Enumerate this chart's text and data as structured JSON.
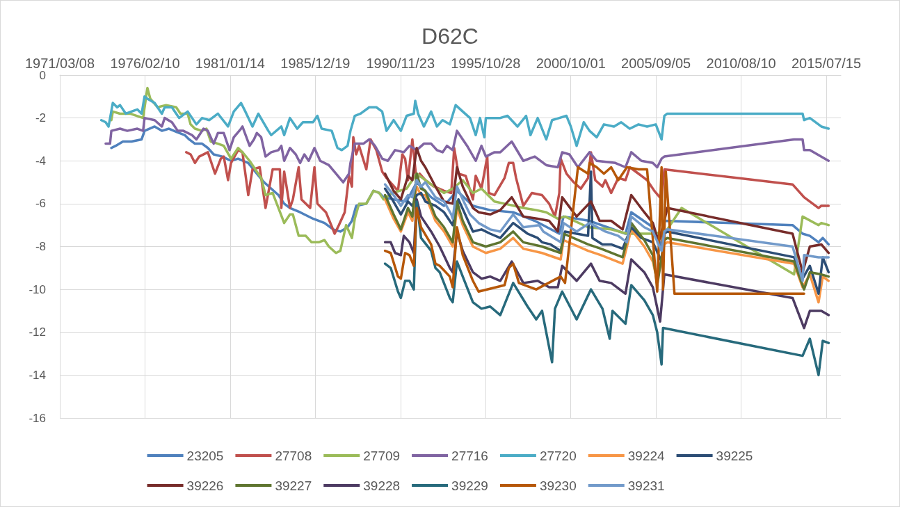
{
  "chart_data": {
    "type": "line",
    "title": "D62C",
    "xlim": [
      "1971-03-08",
      "2016-05-18"
    ],
    "xticks": [
      {
        "value": "1971-03-08",
        "label": "1971/03/08"
      },
      {
        "value": "1976-02-10",
        "label": "1976/02/10"
      },
      {
        "value": "1981-01-14",
        "label": "1981/01/14"
      },
      {
        "value": "1985-12-19",
        "label": "1985/12/19"
      },
      {
        "value": "1990-11-23",
        "label": "1990/11/23"
      },
      {
        "value": "1995-10-28",
        "label": "1995/10/28"
      },
      {
        "value": "2000-10-01",
        "label": "2000/10/01"
      },
      {
        "value": "2005-09-05",
        "label": "2005/09/05"
      },
      {
        "value": "2010-08-10",
        "label": "2010/08/10"
      },
      {
        "value": "2015-07-15",
        "label": "2015/07/15"
      }
    ],
    "ylim": [
      -16,
      0
    ],
    "yticks": [
      -16,
      -14,
      -12,
      -10,
      -8,
      -6,
      -4,
      -2,
      0
    ],
    "grid": true,
    "legend": "bottom",
    "marker": "none",
    "series": [
      {
        "name": "23205",
        "color": "#4f81bd",
        "x": [
          "1974-03",
          "1974-06",
          "1974-11",
          "1975-05",
          "1975-12",
          "1976-02",
          "1976-09",
          "1977-02",
          "1977-07",
          "1978-02",
          "1978-06",
          "1978-09",
          "1979-01",
          "1979-06",
          "1979-10",
          "1980-02",
          "1980-08",
          "1981-02",
          "1981-07",
          "1982-02",
          "1982-08",
          "1983-01",
          "1983-06",
          "1983-11",
          "1984-03",
          "1984-07",
          "1985-02",
          "1985-11",
          "1986-07",
          "1987-01",
          "1987-06",
          "1987-11",
          "1988-02",
          "1988-05",
          "1988-12",
          "1989-05",
          "1989-09",
          "1989-12",
          "1990-07",
          "1991-04",
          "1991-11",
          "1992-09",
          "1993-06",
          "1994-03",
          "1995-02",
          "1996-02",
          "1997-06",
          "1998-09",
          "2000-02",
          "2000-05",
          "2001-11",
          "2003-12",
          "2004-04",
          "2005-07",
          "2006-01",
          "2006-03",
          "2013-08",
          "2014-03",
          "2014-08",
          "2015-02",
          "2015-05",
          "2015-09"
        ],
        "values": [
          -3.4,
          -3.3,
          -3.1,
          -3.1,
          -3.0,
          -2.6,
          -2.4,
          -2.6,
          -2.5,
          -2.7,
          -2.8,
          -3.0,
          -3.2,
          -3.2,
          -3.4,
          -3.7,
          -3.8,
          -4.0,
          -3.9,
          -4.1,
          -4.6,
          -5.0,
          -5.3,
          -5.6,
          -6.0,
          -6.2,
          -6.4,
          -6.7,
          -6.9,
          -7.2,
          -7.3,
          -7.1,
          -6.8,
          -6.1,
          -6.0,
          -5.4,
          -5.5,
          -5.7,
          -5.8,
          -5.9,
          -5.0,
          -5.7,
          -6.1,
          -5.4,
          -6.1,
          -6.3,
          -6.4,
          -6.8,
          -7.4,
          -6.6,
          -6.8,
          -7.4,
          -6.4,
          -7.1,
          -8.0,
          -6.8,
          -7.0,
          -7.4,
          -7.5,
          -7.8,
          -7.6,
          -7.9
        ]
      },
      {
        "name": "27708",
        "color": "#c0504d",
        "x": [
          "1978-07",
          "1978-10",
          "1979-01",
          "1979-04",
          "1979-10",
          "1980-03",
          "1980-07",
          "1980-09",
          "1980-12",
          "1981-02",
          "1981-07",
          "1981-10",
          "1982-02",
          "1982-05",
          "1982-10",
          "1983-02",
          "1983-07",
          "1983-12",
          "1984-01",
          "1984-03",
          "1984-07",
          "1984-09",
          "1985-01",
          "1985-03",
          "1985-09",
          "1985-12",
          "1986-02",
          "1986-08",
          "1987-02",
          "1987-05",
          "1987-09",
          "1987-12",
          "1988-02",
          "1988-03",
          "1988-05",
          "1988-07",
          "1988-12",
          "1989-03",
          "1989-07",
          "1989-11",
          "1990-02",
          "1990-10",
          "1991-01",
          "1991-03",
          "1991-05",
          "1991-08",
          "1991-11",
          "1992-01",
          "1992-05",
          "1992-11",
          "1993-06",
          "1993-11",
          "1994-01",
          "1994-04",
          "1994-09",
          "1995-02",
          "1995-04",
          "1995-08",
          "1995-12",
          "1996-01",
          "1996-05",
          "1996-12",
          "1997-03",
          "1997-06",
          "1997-08",
          "1998-01",
          "1998-07",
          "1999-02",
          "1999-07",
          "1999-11",
          "2000-02",
          "2000-03",
          "2000-07",
          "2000-12",
          "2001-05",
          "2001-10",
          "2001-12",
          "2002-03",
          "2002-08",
          "2002-10",
          "2003-02",
          "2003-07",
          "2003-12",
          "2004-03",
          "2004-09",
          "2005-03",
          "2005-08",
          "2006-01",
          "2006-03",
          "2013-08",
          "2014-04",
          "2015-02",
          "2015-04",
          "2015-09"
        ],
        "values": [
          -3.6,
          -3.7,
          -4.1,
          -3.8,
          -3.6,
          -4.6,
          -3.9,
          -3.8,
          -4.9,
          -4.1,
          -3.5,
          -3.6,
          -5.6,
          -4.4,
          -4.3,
          -6.2,
          -4.4,
          -4.4,
          -6.2,
          -4.5,
          -6.2,
          -5.8,
          -4.3,
          -5.8,
          -6.2,
          -4.3,
          -6.0,
          -6.4,
          -7.4,
          -7.0,
          -6.4,
          -4.7,
          -5.2,
          -2.9,
          -3.7,
          -3.3,
          -4.4,
          -3.0,
          -3.5,
          -4.5,
          -4.8,
          -5.4,
          -3.7,
          -3.9,
          -4.9,
          -3.0,
          -5.0,
          -4.6,
          -4.9,
          -5.2,
          -5.4,
          -5.5,
          -3.4,
          -4.6,
          -4.7,
          -5.8,
          -4.7,
          -5.3,
          -3.8,
          -5.5,
          -5.6,
          -4.8,
          -4.1,
          -4.1,
          -4.8,
          -6.1,
          -5.5,
          -5.6,
          -6.0,
          -6.6,
          -5.5,
          -3.9,
          -4.6,
          -5.0,
          -5.3,
          -4.8,
          -3.6,
          -4.9,
          -5.2,
          -4.9,
          -5.5,
          -4.8,
          -4.9,
          -4.3,
          -4.6,
          -4.9,
          -5.4,
          -5.8,
          -4.4,
          -5.1,
          -5.7,
          -6.2,
          -6.1,
          -6.1
        ]
      },
      {
        "name": "27709",
        "color": "#9bbb59",
        "x": [
          "1974-03",
          "1974-04",
          "1974-09",
          "1975-04",
          "1976-01",
          "1976-04",
          "1976-06",
          "1976-11",
          "1977-05",
          "1977-12",
          "1978-03",
          "1978-08",
          "1978-10",
          "1979-01",
          "1979-06",
          "1979-09",
          "1979-12",
          "1980-05",
          "1980-09",
          "1981-02",
          "1981-07",
          "1981-10",
          "1982-03",
          "1982-08",
          "1982-11",
          "1983-02",
          "1983-07",
          "1983-11",
          "1984-03",
          "1984-07",
          "1984-09",
          "1985-01",
          "1985-06",
          "1985-10",
          "1986-03",
          "1986-07",
          "1986-10",
          "1987-03",
          "1987-06",
          "1987-10",
          "1988-02",
          "1988-04",
          "1988-07",
          "1988-12",
          "1989-05",
          "1989-09",
          "1989-12",
          "1990-06",
          "1991-04",
          "1991-11",
          "1992-09",
          "1993-06",
          "1993-12",
          "1994-07",
          "1995-02",
          "1995-08",
          "1996-05",
          "1996-12",
          "1998-01",
          "1998-10",
          "1999-05",
          "2000-01",
          "2000-06",
          "2001-10",
          "2003-02",
          "2004-01",
          "2005-07",
          "2006-04",
          "2007-03",
          "2013-09",
          "2014-03",
          "2015-02",
          "2015-04",
          "2015-09"
        ],
        "values": [
          -2.1,
          -1.7,
          -1.8,
          -1.8,
          -2.0,
          -0.6,
          -1.1,
          -1.5,
          -1.4,
          -1.5,
          -1.8,
          -1.8,
          -2.3,
          -2.5,
          -2.6,
          -2.5,
          -3.1,
          -3.2,
          -3.3,
          -3.9,
          -3.4,
          -3.6,
          -4.0,
          -4.5,
          -4.8,
          -5.6,
          -5.5,
          -6.2,
          -6.9,
          -6.5,
          -6.5,
          -7.5,
          -7.5,
          -7.8,
          -7.8,
          -7.7,
          -8.0,
          -8.3,
          -8.2,
          -7.0,
          -7.6,
          -6.7,
          -6.0,
          -6.0,
          -5.4,
          -5.5,
          -5.8,
          -5.5,
          -5.3,
          -4.6,
          -5.1,
          -5.5,
          -5.3,
          -4.9,
          -5.5,
          -5.3,
          -5.9,
          -6.0,
          -6.2,
          -6.3,
          -6.4,
          -6.7,
          -6.6,
          -7.1,
          -7.2,
          -7.4,
          -7.4,
          -7.3,
          -6.2,
          -9.3,
          -6.6,
          -7.0,
          -6.9,
          -7.0
        ]
      },
      {
        "name": "27716",
        "color": "#8064a2",
        "x": [
          "1973-11",
          "1974-02",
          "1974-03",
          "1974-09",
          "1975-02",
          "1975-09",
          "1976-01",
          "1976-02",
          "1976-09",
          "1977-02",
          "1977-04",
          "1977-09",
          "1978-01",
          "1978-05",
          "1978-11",
          "1979-02",
          "1979-07",
          "1979-10",
          "1980-02",
          "1980-05",
          "1980-09",
          "1981-01",
          "1981-04",
          "1981-09",
          "1981-10",
          "1982-03",
          "1982-06",
          "1982-08",
          "1982-11",
          "1983-02",
          "1983-06",
          "1983-11",
          "1984-01",
          "1984-03",
          "1984-07",
          "1984-11",
          "1985-02",
          "1985-05",
          "1985-08",
          "1985-12",
          "1986-04",
          "1986-10",
          "1987-03",
          "1987-08",
          "1987-12",
          "1988-01",
          "1988-04",
          "1988-10",
          "1989-02",
          "1989-06",
          "1989-11",
          "1990-03",
          "1990-08",
          "1991-02",
          "1991-06",
          "1991-11",
          "1992-04",
          "1992-09",
          "1993-01",
          "1993-05",
          "1993-08",
          "1993-12",
          "1994-03",
          "1994-07",
          "1994-10",
          "1995-04",
          "1995-08",
          "1995-11",
          "1996-05",
          "1996-09",
          "1997-05",
          "1998-01",
          "1998-09",
          "1999-05",
          "2000-01",
          "2000-04",
          "2000-09",
          "2001-03",
          "2001-11",
          "2002-04",
          "2003-05",
          "2003-12",
          "2004-04",
          "2004-11",
          "2005-07",
          "2005-10",
          "2006-01",
          "2006-03",
          "2013-09",
          "2014-03",
          "2014-04",
          "2014-08",
          "2015-09"
        ],
        "values": [
          -3.2,
          -3.2,
          -2.6,
          -2.5,
          -2.6,
          -2.5,
          -2.6,
          -2.0,
          -2.1,
          -2.4,
          -2.0,
          -2.2,
          -2.6,
          -2.6,
          -2.8,
          -3.0,
          -2.5,
          -2.6,
          -3.2,
          -2.7,
          -2.7,
          -3.5,
          -2.9,
          -2.5,
          -2.4,
          -3.3,
          -3.0,
          -2.7,
          -2.9,
          -3.8,
          -3.6,
          -3.5,
          -3.3,
          -4.0,
          -3.4,
          -3.7,
          -4.1,
          -3.7,
          -4.0,
          -3.4,
          -4.0,
          -4.2,
          -4.6,
          -5.0,
          -4.6,
          -4.1,
          -3.2,
          -3.2,
          -3.0,
          -3.3,
          -3.9,
          -4.0,
          -3.5,
          -3.6,
          -3.3,
          -3.5,
          -3.2,
          -3.2,
          -3.5,
          -3.6,
          -3.3,
          -3.5,
          -2.6,
          -3.0,
          -3.3,
          -4.0,
          -3.3,
          -3.8,
          -3.6,
          -3.6,
          -3.1,
          -4.0,
          -3.8,
          -4.2,
          -4.3,
          -3.6,
          -3.7,
          -4.3,
          -3.6,
          -4.0,
          -4.1,
          -4.3,
          -3.6,
          -4.0,
          -4.1,
          -4.3,
          -3.9,
          -3.8,
          -3.0,
          -3.0,
          -3.5,
          -3.5,
          -4.0
        ]
      },
      {
        "name": "27720",
        "color": "#4bacc6",
        "x": [
          "1973-08",
          "1973-11",
          "1974-01",
          "1974-04",
          "1974-07",
          "1974-09",
          "1975-01",
          "1975-05",
          "1975-09",
          "1975-12",
          "1976-02",
          "1976-04",
          "1976-09",
          "1977-02",
          "1977-04",
          "1977-09",
          "1978-02",
          "1978-08",
          "1979-02",
          "1979-06",
          "1979-11",
          "1980-05",
          "1980-12",
          "1981-04",
          "1981-09",
          "1981-12",
          "1982-05",
          "1982-09",
          "1983-04",
          "1983-06",
          "1984-01",
          "1984-03",
          "1984-07",
          "1984-12",
          "1985-04",
          "1985-11",
          "1986-02",
          "1986-05",
          "1986-12",
          "1987-04",
          "1987-07",
          "1987-11",
          "1988-01",
          "1988-04",
          "1988-08",
          "1989-02",
          "1989-07",
          "1989-11",
          "1990-02",
          "1990-07",
          "1990-12",
          "1991-04",
          "1991-09",
          "1991-10",
          "1991-12",
          "1992-04",
          "1992-09",
          "1993-01",
          "1993-05",
          "1993-10",
          "1994-02",
          "1994-07",
          "1994-12",
          "1995-04",
          "1995-07",
          "1995-10",
          "1995-11",
          "1996-09",
          "1997-02",
          "1997-09",
          "1998-03",
          "1998-06",
          "1998-11",
          "1999-05",
          "1999-09",
          "2000-02",
          "2000-07",
          "2000-10",
          "2001-02",
          "2001-07",
          "2001-11",
          "2002-04",
          "2002-09",
          "2003-04",
          "2003-09",
          "2004-03",
          "2004-09",
          "2005-03",
          "2005-09",
          "2006-01",
          "2006-03",
          "2006-05",
          "2014-03",
          "2014-04",
          "2014-08",
          "2015-04",
          "2015-09"
        ],
        "values": [
          -2.1,
          -2.2,
          -2.4,
          -1.3,
          -1.5,
          -1.4,
          -1.8,
          -1.7,
          -1.6,
          -1.8,
          -1.0,
          -1.1,
          -1.3,
          -1.8,
          -1.5,
          -1.5,
          -2.0,
          -1.7,
          -2.3,
          -2.0,
          -2.1,
          -1.8,
          -2.4,
          -1.7,
          -1.3,
          -1.7,
          -2.4,
          -1.8,
          -2.6,
          -2.8,
          -2.4,
          -2.8,
          -2.0,
          -2.5,
          -2.2,
          -2.2,
          -1.9,
          -2.5,
          -2.6,
          -3.4,
          -3.5,
          -3.3,
          -2.6,
          -1.9,
          -1.8,
          -1.5,
          -1.5,
          -1.7,
          -2.6,
          -2.1,
          -2.6,
          -1.9,
          -1.8,
          -1.2,
          -1.8,
          -2.4,
          -1.7,
          -2.4,
          -2.1,
          -2.3,
          -1.4,
          -1.7,
          -2.0,
          -2.8,
          -2.0,
          -2.9,
          -2.0,
          -2.0,
          -1.9,
          -2.4,
          -1.9,
          -2.8,
          -2.0,
          -3.0,
          -2.1,
          -2.0,
          -1.9,
          -2.4,
          -3.3,
          -2.2,
          -2.6,
          -2.9,
          -2.3,
          -2.4,
          -2.2,
          -2.5,
          -2.3,
          -2.4,
          -2.3,
          -3.0,
          -1.9,
          -1.8,
          -1.8,
          -2.1,
          -2.0,
          -2.4,
          -2.5
        ]
      },
      {
        "name": "39224",
        "color": "#f79646",
        "x": [
          "1990-01",
          "1990-07",
          "1990-12",
          "1991-05",
          "1991-08",
          "1991-11",
          "1992-02",
          "1992-05",
          "1992-12",
          "1993-06",
          "1993-12",
          "1994-03",
          "1994-07",
          "1995-02",
          "1995-11",
          "1996-09",
          "1997-06",
          "1998-01",
          "1999-02",
          "2000-03",
          "2000-05",
          "2001-10",
          "2002-07",
          "2003-10",
          "2004-04",
          "2005-01",
          "2005-07",
          "2005-10",
          "2006-03",
          "2006-05",
          "2013-09",
          "2014-03",
          "2014-08",
          "2015-02",
          "2015-05",
          "2015-09"
        ],
        "values": [
          -5.8,
          -6.7,
          -7.3,
          -6.4,
          -6.8,
          -5.2,
          -5.6,
          -5.6,
          -6.8,
          -7.3,
          -8.0,
          -6.2,
          -7.0,
          -8.0,
          -8.3,
          -8.1,
          -7.6,
          -8.1,
          -8.3,
          -8.6,
          -7.7,
          -8.2,
          -8.4,
          -8.8,
          -7.2,
          -8.0,
          -8.7,
          -9.6,
          -7.9,
          -7.8,
          -8.8,
          -9.9,
          -9.3,
          -10.6,
          -9.4,
          -9.6
        ]
      },
      {
        "name": "39225",
        "color": "#2c4d75",
        "x": [
          "1990-01",
          "1990-06",
          "1990-12",
          "1991-05",
          "1991-08",
          "1991-11",
          "1992-02",
          "1992-05",
          "1992-12",
          "1993-06",
          "1993-12",
          "1994-04",
          "1995-02",
          "1995-08",
          "1996-02",
          "1996-09",
          "1997-06",
          "1998-04",
          "1998-11",
          "1999-02",
          "1999-08",
          "2000-03",
          "2000-06",
          "2001-10",
          "2001-12",
          "2002-01",
          "2002-08",
          "2003-02",
          "2003-10",
          "2004-04",
          "2004-11",
          "2005-07",
          "2006-01",
          "2006-03",
          "2006-05",
          "2013-09",
          "2014-03",
          "2014-08",
          "2015-02",
          "2015-05",
          "2015-09"
        ],
        "values": [
          -5.3,
          -5.8,
          -6.5,
          -5.9,
          -6.1,
          -5.6,
          -5.5,
          -5.9,
          -6.1,
          -6.4,
          -7.0,
          -5.8,
          -7.3,
          -7.2,
          -7.4,
          -7.6,
          -6.9,
          -7.4,
          -7.6,
          -7.8,
          -7.9,
          -8.2,
          -7.3,
          -7.5,
          -4.5,
          -7.6,
          -7.9,
          -7.9,
          -8.1,
          -7.1,
          -7.6,
          -7.8,
          -8.7,
          -7.4,
          -7.3,
          -8.5,
          -9.5,
          -8.9,
          -10.2,
          -8.5,
          -9.2
        ]
      },
      {
        "name": "39226",
        "color": "#772c2a",
        "x": [
          "1990-01",
          "1990-07",
          "1990-12",
          "1991-05",
          "1991-08",
          "1991-11",
          "1992-02",
          "1992-05",
          "1992-12",
          "1993-06",
          "1993-12",
          "1994-03",
          "1994-07",
          "1995-02",
          "1995-06",
          "1996-02",
          "1996-09",
          "1997-05",
          "1998-01",
          "1998-11",
          "1999-07",
          "2000-01",
          "2000-04",
          "2001-02",
          "2001-12",
          "2002-06",
          "2003-02",
          "2003-10",
          "2004-04",
          "2005-01",
          "2005-07",
          "2005-11",
          "2006-03",
          "2006-05",
          "2013-08",
          "2014-03",
          "2014-08",
          "2015-04",
          "2015-09"
        ],
        "values": [
          -4.6,
          -5.4,
          -5.8,
          -4.7,
          -4.9,
          -3.4,
          -4.0,
          -4.3,
          -5.2,
          -5.9,
          -6.0,
          -4.3,
          -5.2,
          -6.2,
          -6.4,
          -6.5,
          -6.3,
          -5.7,
          -6.6,
          -6.7,
          -6.8,
          -7.3,
          -5.7,
          -6.6,
          -5.9,
          -6.8,
          -6.8,
          -7.2,
          -5.6,
          -6.4,
          -6.9,
          -7.8,
          -6.8,
          -6.2,
          -7.4,
          -9.2,
          -8.0,
          -7.9,
          -8.3
        ]
      },
      {
        "name": "39227",
        "color": "#5f7530",
        "x": [
          "1990-01",
          "1990-07",
          "1990-12",
          "1991-05",
          "1991-08",
          "1991-11",
          "1992-02",
          "1992-05",
          "1992-12",
          "1993-06",
          "1993-12",
          "1994-03",
          "1994-07",
          "1995-02",
          "1995-11",
          "1996-09",
          "1997-06",
          "1998-01",
          "1999-02",
          "2000-03",
          "2000-05",
          "2001-10",
          "2002-07",
          "2003-10",
          "2004-04",
          "2005-01",
          "2005-07",
          "2005-10",
          "2006-03",
          "2006-05",
          "2013-09",
          "2014-04",
          "2014-08",
          "2015-04",
          "2015-09"
        ],
        "values": [
          -5.6,
          -6.5,
          -7.2,
          -6.2,
          -6.6,
          -4.6,
          -5.3,
          -5.4,
          -6.6,
          -7.1,
          -7.8,
          -5.9,
          -6.8,
          -7.8,
          -8.0,
          -7.8,
          -7.3,
          -7.8,
          -8.0,
          -8.3,
          -7.4,
          -7.9,
          -8.1,
          -8.5,
          -6.9,
          -7.7,
          -8.4,
          -9.8,
          -7.7,
          -7.6,
          -8.7,
          -10.0,
          -9.2,
          -9.3,
          -9.4
        ]
      },
      {
        "name": "39228",
        "color": "#4d3b62",
        "x": [
          "1990-01",
          "1990-05",
          "1990-08",
          "1990-12",
          "1991-02",
          "1991-06",
          "1991-09",
          "1991-11",
          "1992-02",
          "1992-09",
          "1993-03",
          "1993-10",
          "1993-12",
          "1994-03",
          "1994-07",
          "1995-02",
          "1995-08",
          "1996-02",
          "1996-09",
          "1997-05",
          "1998-01",
          "1998-11",
          "1999-07",
          "2000-01",
          "2000-04",
          "2001-02",
          "2001-12",
          "2002-06",
          "2003-02",
          "2003-12",
          "2004-04",
          "2005-01",
          "2005-07",
          "2005-12",
          "2006-03",
          "2013-08",
          "2014-04",
          "2014-08",
          "2015-04",
          "2015-09"
        ],
        "values": [
          -7.8,
          -7.8,
          -8.3,
          -8.4,
          -7.5,
          -7.8,
          -8.3,
          -5.8,
          -6.6,
          -7.3,
          -8.0,
          -9.0,
          -9.2,
          -7.3,
          -8.2,
          -9.2,
          -9.5,
          -9.4,
          -9.6,
          -8.7,
          -9.7,
          -9.6,
          -9.9,
          -9.9,
          -8.9,
          -9.6,
          -8.8,
          -9.6,
          -9.7,
          -10.2,
          -8.6,
          -9.2,
          -9.9,
          -11.5,
          -9.3,
          -10.4,
          -11.8,
          -11.0,
          -11.0,
          -11.2
        ]
      },
      {
        "name": "39229",
        "color": "#276a7c",
        "x": [
          "1990-01",
          "1990-05",
          "1990-10",
          "1990-12",
          "1991-03",
          "1991-06",
          "1991-09",
          "1991-11",
          "1992-02",
          "1992-09",
          "1992-12",
          "1993-03",
          "1993-10",
          "1993-12",
          "1994-03",
          "1994-07",
          "1995-02",
          "1995-08",
          "1996-02",
          "1996-09",
          "1997-06",
          "1998-04",
          "1998-10",
          "1999-02",
          "1999-09",
          "1999-11",
          "2000-04",
          "2001-02",
          "2001-12",
          "2002-08",
          "2003-01",
          "2003-03",
          "2003-12",
          "2004-04",
          "2005-01",
          "2005-07",
          "2005-10",
          "2006-01",
          "2006-02",
          "2014-03",
          "2014-08",
          "2015-02",
          "2015-05",
          "2015-09"
        ],
        "values": [
          -8.8,
          -9.0,
          -10.1,
          -10.4,
          -9.6,
          -9.6,
          -10.0,
          -5.9,
          -7.6,
          -8.2,
          -9.0,
          -9.2,
          -10.4,
          -10.6,
          -8.7,
          -9.4,
          -10.6,
          -10.9,
          -10.8,
          -11.2,
          -9.7,
          -10.8,
          -11.4,
          -11.0,
          -13.4,
          -10.9,
          -10.1,
          -11.4,
          -10.0,
          -10.9,
          -12.3,
          -11.0,
          -11.6,
          -9.8,
          -10.5,
          -11.2,
          -12.0,
          -13.5,
          -11.8,
          -13.1,
          -12.3,
          -14.0,
          -12.4,
          -12.5
        ]
      },
      {
        "name": "39230",
        "color": "#b65708",
        "x": [
          "1990-01",
          "1990-05",
          "1990-10",
          "1990-12",
          "1991-03",
          "1991-06",
          "1991-09",
          "1991-11",
          "1992-02",
          "1992-09",
          "1992-12",
          "1993-03",
          "1993-10",
          "1993-12",
          "1994-03",
          "1994-07",
          "1995-02",
          "1995-06",
          "1996-12",
          "1997-03",
          "1997-06",
          "1997-10",
          "1998-10",
          "2000-03",
          "2000-06",
          "2001-03",
          "2001-10",
          "2001-11",
          "2002-04",
          "2002-09",
          "2003-02",
          "2003-07",
          "2004-01",
          "2004-09",
          "2005-03",
          "2005-10",
          "2006-01",
          "2006-02",
          "2006-04",
          "2006-10",
          "2014-04"
        ],
        "values": [
          -8.2,
          -8.3,
          -9.4,
          -9.5,
          -8.3,
          -8.4,
          -8.9,
          -6.2,
          -7.1,
          -7.9,
          -8.8,
          -8.9,
          -9.4,
          -9.9,
          -7.1,
          -8.4,
          -9.6,
          -10.1,
          -9.8,
          -9.0,
          -8.8,
          -9.7,
          -10.0,
          -9.4,
          -9.7,
          -4.3,
          -4.6,
          -4.1,
          -4.3,
          -4.6,
          -4.3,
          -4.9,
          -4.3,
          -4.4,
          -4.4,
          -10.1,
          -4.3,
          -10.0,
          -4.5,
          -10.2,
          -10.2
        ]
      },
      {
        "name": "39231",
        "color": "#729aca",
        "x": [
          "1990-01",
          "1990-07",
          "1990-12",
          "1991-05",
          "1991-08",
          "1991-11",
          "1992-02",
          "1992-05",
          "1992-12",
          "1993-06",
          "1993-11",
          "1993-12",
          "1994-03",
          "1994-07",
          "1994-12",
          "1995-06",
          "1996-02",
          "1996-09",
          "1997-06",
          "1998-01",
          "1998-12",
          "1999-03",
          "2000-03",
          "2000-05",
          "2001-02",
          "2001-11",
          "2002-10",
          "2003-07",
          "2004-01",
          "2004-04",
          "2005-01",
          "2005-07",
          "2006-01",
          "2006-03",
          "2006-05",
          "2013-08",
          "2014-03",
          "2014-04",
          "2015-02",
          "2015-09"
        ],
        "values": [
          -5.1,
          -5.6,
          -6.1,
          -5.6,
          -5.7,
          -4.9,
          -5.2,
          -5.0,
          -5.7,
          -5.9,
          -6.5,
          -6.7,
          -5.2,
          -5.8,
          -6.5,
          -6.9,
          -7.2,
          -7.3,
          -6.5,
          -7.1,
          -7.0,
          -7.3,
          -7.8,
          -6.9,
          -7.3,
          -6.9,
          -7.3,
          -7.5,
          -7.8,
          -6.6,
          -7.1,
          -7.3,
          -8.2,
          -7.3,
          -7.2,
          -8.0,
          -9.6,
          -8.4,
          -8.5,
          -8.5
        ]
      }
    ]
  }
}
